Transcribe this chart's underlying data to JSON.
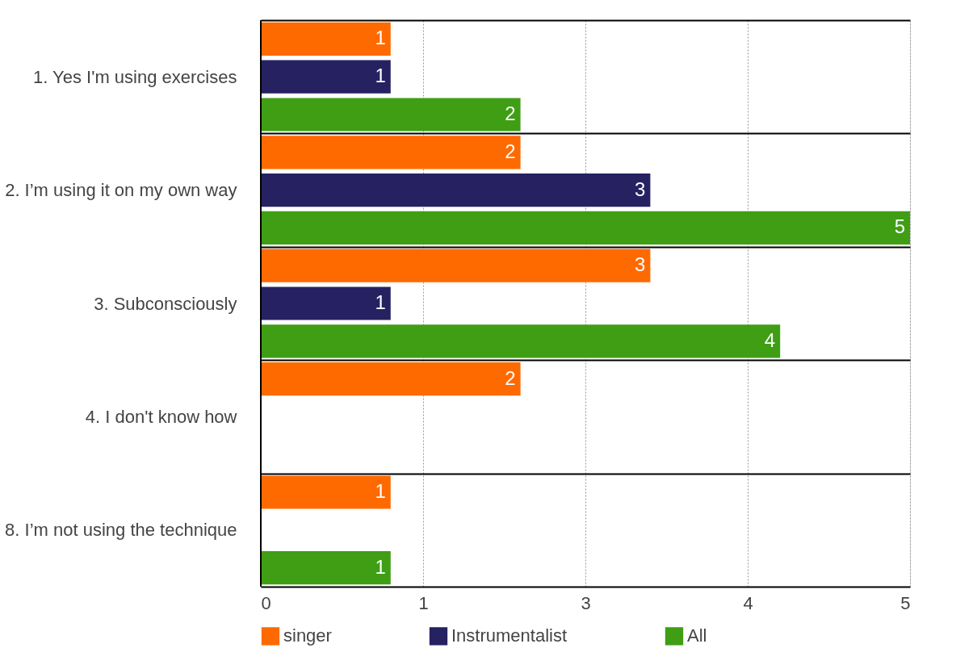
{
  "chart_data": {
    "type": "bar",
    "orientation": "horizontal",
    "categories": [
      "1. Yes I'm using exercises",
      "2. I’m using it on my own way",
      "3. Subconsciously",
      "4. I don't know how",
      "8. I’m not using the technique"
    ],
    "series": [
      {
        "name": "singer",
        "color": "#ff6a00",
        "values": [
          1,
          2,
          3,
          2,
          1
        ]
      },
      {
        "name": "Instrumentalist",
        "color": "#262262",
        "values": [
          1,
          3,
          1,
          null,
          null
        ]
      },
      {
        "name": "All",
        "color": "#3f9e14",
        "values": [
          2,
          5,
          4,
          null,
          1
        ]
      }
    ],
    "xlim": [
      0,
      5
    ],
    "xticks": [
      0,
      {
        "value": 1.25,
        "label": "1"
      },
      {
        "value": 2.5,
        "label": "3"
      },
      {
        "value": 3.75,
        "label": "4"
      },
      5
    ],
    "data_labels": true,
    "grid": "x",
    "legend": "bottom"
  }
}
